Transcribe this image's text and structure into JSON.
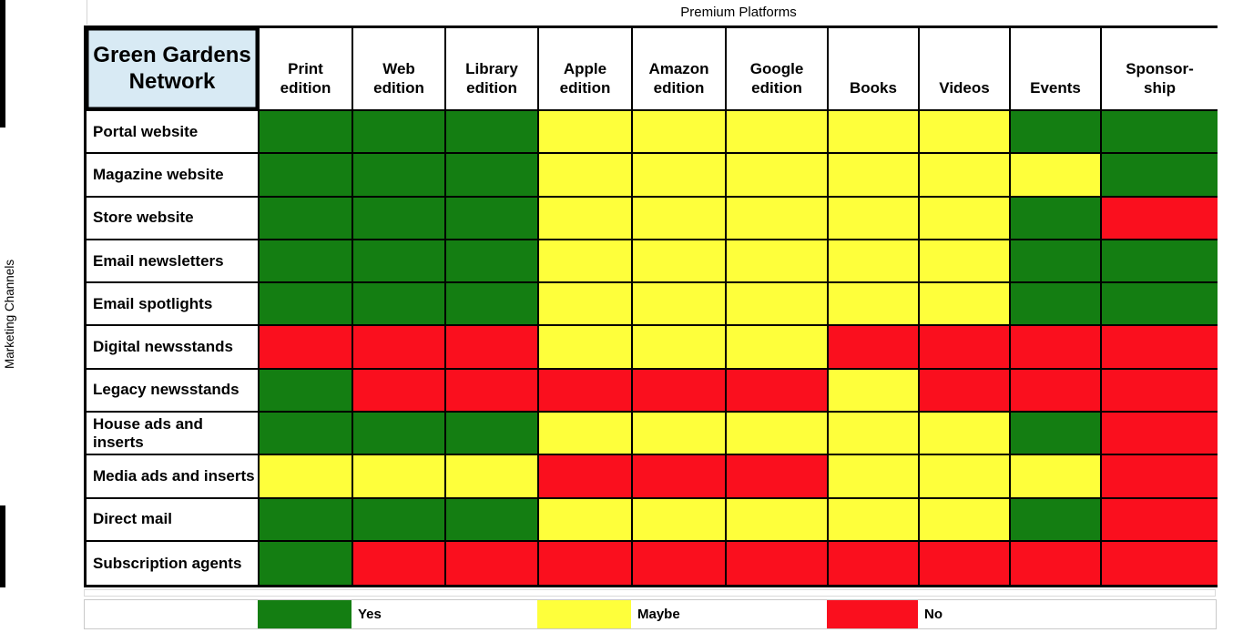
{
  "chart_data": {
    "type": "heatmap",
    "title": "Green Gardens\nNetwork",
    "column_axis_title": "Premium Platforms",
    "row_axis_title": "Marketing Channels",
    "columns": [
      "Print\nedition",
      "Web\nedition",
      "Library\nedition",
      "Apple\nedition",
      "Amazon\nedition",
      "Google\nedition",
      "Books",
      "Videos",
      "Events",
      "Sponsor-\nship"
    ],
    "rows": [
      "Portal website",
      "Magazine website",
      "Store website",
      "Email newsletters",
      "Email spotlights",
      "Digital newsstands",
      "Legacy newsstands",
      "House ads and inserts",
      "Media ads and inserts",
      "Direct mail",
      "Subscription agents"
    ],
    "values": [
      [
        "yes",
        "yes",
        "yes",
        "maybe",
        "maybe",
        "maybe",
        "maybe",
        "maybe",
        "yes",
        "yes"
      ],
      [
        "yes",
        "yes",
        "yes",
        "maybe",
        "maybe",
        "maybe",
        "maybe",
        "maybe",
        "maybe",
        "yes"
      ],
      [
        "yes",
        "yes",
        "yes",
        "maybe",
        "maybe",
        "maybe",
        "maybe",
        "maybe",
        "yes",
        "no"
      ],
      [
        "yes",
        "yes",
        "yes",
        "maybe",
        "maybe",
        "maybe",
        "maybe",
        "maybe",
        "yes",
        "yes"
      ],
      [
        "yes",
        "yes",
        "yes",
        "maybe",
        "maybe",
        "maybe",
        "maybe",
        "maybe",
        "yes",
        "yes"
      ],
      [
        "no",
        "no",
        "no",
        "maybe",
        "maybe",
        "maybe",
        "no",
        "no",
        "no",
        "no"
      ],
      [
        "yes",
        "no",
        "no",
        "no",
        "no",
        "no",
        "maybe",
        "no",
        "no",
        "no"
      ],
      [
        "yes",
        "yes",
        "yes",
        "maybe",
        "maybe",
        "maybe",
        "maybe",
        "maybe",
        "yes",
        "no"
      ],
      [
        "maybe",
        "maybe",
        "maybe",
        "no",
        "no",
        "no",
        "maybe",
        "maybe",
        "maybe",
        "no"
      ],
      [
        "yes",
        "yes",
        "yes",
        "maybe",
        "maybe",
        "maybe",
        "maybe",
        "maybe",
        "yes",
        "no"
      ],
      [
        "yes",
        "no",
        "no",
        "no",
        "no",
        "no",
        "no",
        "no",
        "no",
        "no"
      ]
    ],
    "colors": {
      "yes": "#147E12",
      "maybe": "#FEFF3B",
      "no": "#FA0F1E"
    },
    "legend": [
      {
        "label": "Yes",
        "value": "yes",
        "color": "#147E12"
      },
      {
        "label": "Maybe",
        "value": "maybe",
        "color": "#FEFF3B"
      },
      {
        "label": "No",
        "value": "no",
        "color": "#FA0F1E"
      }
    ],
    "legend_position": "bottom",
    "grid": true,
    "corner_bg_color": "#d8eaf4"
  }
}
